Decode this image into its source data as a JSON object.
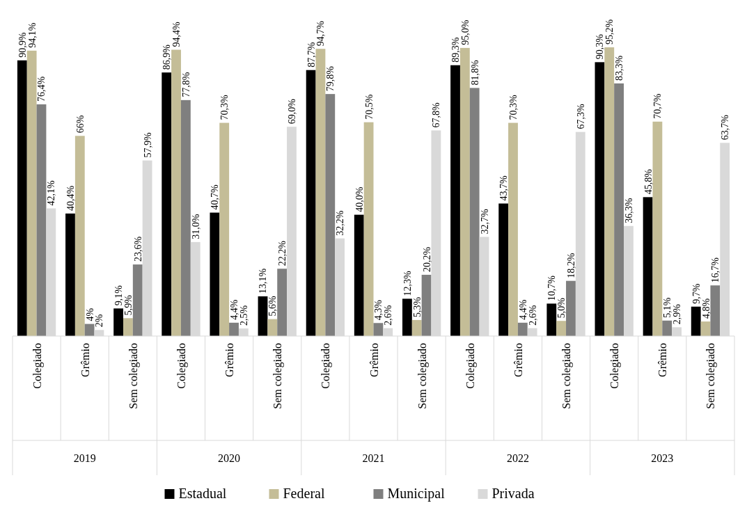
{
  "chart_data": {
    "type": "bar",
    "categories": [
      "Colegiado",
      "Grêmio",
      "Sem colegiado",
      "Colegiado",
      "Grêmio",
      "Sem colegiado",
      "Colegiado",
      "Grêmio",
      "Sem colegiado",
      "Colegiado",
      "Grêmio",
      "Sem colegiado",
      "Colegiado",
      "Grêmio",
      "Sem colegiado"
    ],
    "annotations": [
      "2019",
      "2020",
      "2021",
      "2022",
      "2023"
    ],
    "legend": "bottom",
    "series": [
      {
        "name": "Estadual",
        "color": "#000000",
        "values": [
          90.9,
          40.4,
          9.1,
          86.9,
          40.7,
          13.1,
          87.7,
          40.0,
          12.3,
          89.3,
          43.7,
          10.7,
          90.3,
          45.8,
          9.7
        ],
        "value_labels": [
          "90,9%",
          "40,4%",
          "9,1%",
          "86,9%",
          "40,7%",
          "13,1%",
          "87,7%",
          "40,0%",
          "12,3%",
          "89,3%",
          "43,7%",
          "10,7%",
          "90,3%",
          "45,8%",
          "9,7%"
        ]
      },
      {
        "name": "Federal",
        "color": "#c4bd97",
        "values": [
          94.1,
          66,
          5.9,
          94.4,
          70.3,
          5.6,
          94.7,
          70.5,
          5.3,
          95.0,
          70.3,
          5.0,
          95.2,
          70.7,
          4.8
        ],
        "value_labels": [
          "94,1%",
          "66%",
          "5,9%",
          "94,4%",
          "70,3%",
          "5,6%",
          "94,7%",
          "70,5%",
          "5,3%",
          "95,0%",
          "70,3%",
          "5,0%",
          "95,2%",
          "70,7%",
          "4,8%"
        ]
      },
      {
        "name": "Municipal",
        "color": "#7f7f7f",
        "values": [
          76.4,
          4,
          23.6,
          77.8,
          4.4,
          22.2,
          79.8,
          4.3,
          20.2,
          81.8,
          4.4,
          18.2,
          83.3,
          5.1,
          16.7
        ],
        "value_labels": [
          "76,4%",
          "4%",
          "23,6%",
          "77,8%",
          "4,4%",
          "22,2%",
          "79,8%",
          "4,3%",
          "20,2%",
          "81,8%",
          "4,4%",
          "18,2%",
          "83,3%",
          "5,1%",
          "16,7%"
        ]
      },
      {
        "name": "Privada",
        "color": "#d9d9d9",
        "values": [
          42.1,
          2,
          57.9,
          31.0,
          2.5,
          69.0,
          32.2,
          2.6,
          67.8,
          32.7,
          2.6,
          67.3,
          36.3,
          2.9,
          63.7
        ],
        "value_labels": [
          "42,1%",
          "2%",
          "57,9%",
          "31,0%",
          "2,5%",
          "69,0%",
          "32,2%",
          "2,6%",
          "67,8%",
          "32,7%",
          "2,6%",
          "67,3%",
          "36,3%",
          "2,9%",
          "63,7%"
        ]
      }
    ]
  }
}
